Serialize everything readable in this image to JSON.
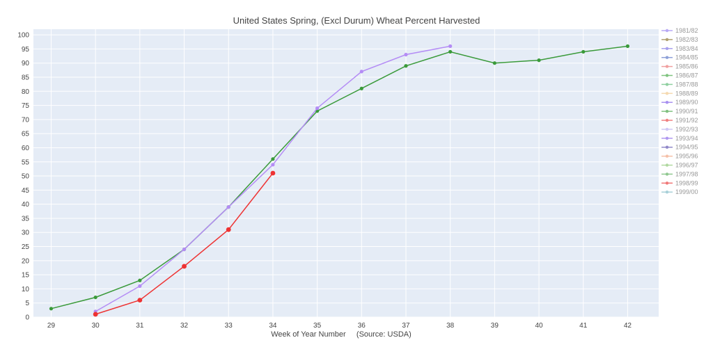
{
  "chart_data": {
    "type": "line",
    "title": "United States Spring, (Excl Durum) Wheat Percent Harvested",
    "xlabel": "Week of Year Number     (Source: USDA)",
    "ylabel": "",
    "x_ticks": [
      "29",
      "30",
      "31",
      "32",
      "33",
      "34",
      "35",
      "36",
      "37",
      "38",
      "39",
      "40",
      "41",
      "42"
    ],
    "y_ticks": [
      "0",
      "5",
      "10",
      "15",
      "20",
      "25",
      "30",
      "35",
      "40",
      "45",
      "50",
      "55",
      "60",
      "65",
      "70",
      "75",
      "80",
      "85",
      "90",
      "95",
      "100"
    ],
    "xlim": [
      28.6,
      42.7
    ],
    "ylim": [
      0,
      102
    ],
    "grid": true,
    "legend_placement": "right",
    "legend": [
      {
        "name": "1981/82",
        "color": "#b8a9f5"
      },
      {
        "name": "1982/83",
        "color": "#b0a070"
      },
      {
        "name": "1983/84",
        "color": "#a8a0ee"
      },
      {
        "name": "1984/85",
        "color": "#8da0d8"
      },
      {
        "name": "1985/86",
        "color": "#f0a0a0"
      },
      {
        "name": "1986/87",
        "color": "#7fc37f"
      },
      {
        "name": "1987/88",
        "color": "#8fd0a0"
      },
      {
        "name": "1988/89",
        "color": "#f5d9b0"
      },
      {
        "name": "1989/90",
        "color": "#a890f0"
      },
      {
        "name": "1990/91",
        "color": "#80c080"
      },
      {
        "name": "1991/92",
        "color": "#f08080"
      },
      {
        "name": "1992/93",
        "color": "#d0c8f5"
      },
      {
        "name": "1993/94",
        "color": "#b098f0"
      },
      {
        "name": "1994/95",
        "color": "#9088c8"
      },
      {
        "name": "1995/96",
        "color": "#f5c0a8"
      },
      {
        "name": "1996/97",
        "color": "#b0d8a0"
      },
      {
        "name": "1997/98",
        "color": "#90c890"
      },
      {
        "name": "1998/99",
        "color": "#f07878"
      },
      {
        "name": "1999/00",
        "color": "#a8d0d8"
      }
    ],
    "series": [
      {
        "color": "#3a9a3a",
        "marker_size": 2.6,
        "x": [
          29,
          30,
          31,
          32,
          33,
          34,
          35,
          36,
          37,
          38,
          39,
          40,
          41,
          42
        ],
        "y": [
          3,
          7,
          13,
          24,
          39,
          56,
          73,
          81,
          89,
          94,
          90,
          91,
          94,
          96
        ]
      },
      {
        "color": "#b48cf5",
        "marker_size": 2.6,
        "x": [
          30,
          31,
          32,
          33,
          34,
          35,
          36,
          37,
          38
        ],
        "y": [
          2,
          11,
          24,
          39,
          54,
          74,
          87,
          93,
          96
        ]
      },
      {
        "color": "#ee3333",
        "marker_size": 3.4,
        "x": [
          30,
          31,
          32,
          33,
          34
        ],
        "y": [
          1,
          6,
          18,
          31,
          51
        ]
      }
    ]
  }
}
